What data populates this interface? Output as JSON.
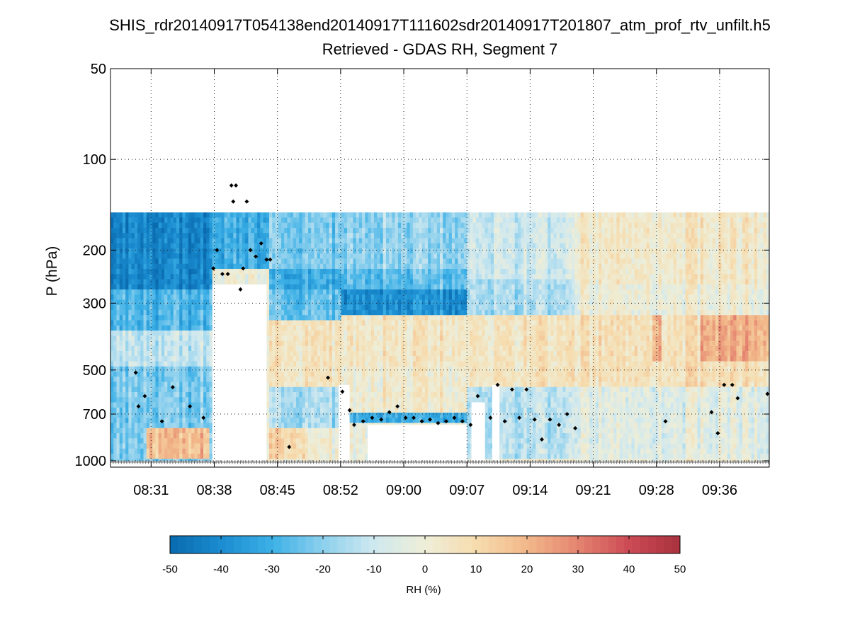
{
  "chart_data": {
    "type": "heatmap",
    "title": "SHIS_rdr20140917T054138end20140917T111602sdr20140917T201807_atm_prof_rtv_unfilt.h5",
    "subtitle": "Retrieved - GDAS RH, Segment 7",
    "ylabel": "P (hPa)",
    "xlabel": "",
    "y_scale": "log",
    "y_reversed": true,
    "ylim": [
      50,
      1050
    ],
    "yticks": [
      50,
      100,
      200,
      300,
      500,
      700,
      1000
    ],
    "ytick_labels": [
      "50",
      "100",
      "200",
      "300",
      "500",
      "700",
      "1000"
    ],
    "x_minutes_range": [
      26.5,
      99.5
    ],
    "xticks_minutes": [
      31,
      38,
      45,
      52,
      59,
      66,
      73,
      80,
      87,
      94
    ],
    "xtick_labels": [
      "08:31",
      "08:38",
      "08:45",
      "08:52",
      "09:00",
      "09:07",
      "09:14",
      "09:21",
      "09:28",
      "09:36"
    ],
    "grid": true,
    "data_top_pressure": 150,
    "colorbar": {
      "label": "RH (%)",
      "vmin": -50,
      "vmax": 50,
      "ticks": [
        -50,
        -40,
        -30,
        -20,
        -10,
        0,
        10,
        20,
        30,
        40,
        50
      ],
      "tick_labels": [
        "-50",
        "-40",
        "-30",
        "-20",
        "-10",
        "0",
        "10",
        "20",
        "30",
        "40",
        "50"
      ],
      "colors": [
        "#0a6aae",
        "#1a8cd0",
        "#3cb0e6",
        "#8dd0ee",
        "#cfe8ef",
        "#eeeed8",
        "#f6dcae",
        "#f2b88a",
        "#e48470",
        "#cc4a55",
        "#a8323e"
      ]
    },
    "wet_regions": [
      {
        "t0": 26.5,
        "t1": 37.8,
        "p0": 150,
        "p1": 270,
        "rh": -42
      },
      {
        "t0": 26.5,
        "t1": 37.8,
        "p0": 270,
        "p1": 370,
        "rh": -28
      },
      {
        "t0": 26.5,
        "t1": 37.8,
        "p0": 370,
        "p1": 480,
        "rh": -12
      },
      {
        "t0": 26.5,
        "t1": 37.8,
        "p0": 480,
        "p1": 1000,
        "rh": -22
      },
      {
        "t0": 30.5,
        "t1": 37.5,
        "p0": 780,
        "p1": 980,
        "rh": 18
      },
      {
        "t0": 37.8,
        "t1": 44.0,
        "p0": 150,
        "p1": 230,
        "rh": -30
      },
      {
        "t0": 44.0,
        "t1": 52.0,
        "p0": 150,
        "p1": 230,
        "rh": -22
      },
      {
        "t0": 44.0,
        "t1": 52.0,
        "p0": 230,
        "p1": 270,
        "rh": -32
      },
      {
        "t0": 44.0,
        "t1": 52.0,
        "p0": 270,
        "p1": 340,
        "rh": -25
      },
      {
        "t0": 44.0,
        "t1": 52.0,
        "p0": 340,
        "p1": 560,
        "rh": 6
      },
      {
        "t0": 44.0,
        "t1": 52.0,
        "p0": 560,
        "p1": 780,
        "rh": -16
      },
      {
        "t0": 44.0,
        "t1": 48.0,
        "p0": 780,
        "p1": 980,
        "rh": 12
      },
      {
        "t0": 52.0,
        "t1": 66.0,
        "p0": 150,
        "p1": 230,
        "rh": -18
      },
      {
        "t0": 52.0,
        "t1": 66.0,
        "p0": 230,
        "p1": 270,
        "rh": -25
      },
      {
        "t0": 52.0,
        "t1": 66.0,
        "p0": 270,
        "p1": 330,
        "rh": -38
      },
      {
        "t0": 52.0,
        "t1": 66.0,
        "p0": 330,
        "p1": 480,
        "rh": 6
      },
      {
        "t0": 52.0,
        "t1": 66.0,
        "p0": 480,
        "p1": 680,
        "rh": 3
      },
      {
        "t0": 52.0,
        "t1": 66.0,
        "p0": 680,
        "p1": 760,
        "rh": -30
      },
      {
        "t0": 66.0,
        "t1": 78.0,
        "p0": 150,
        "p1": 250,
        "rh": -10
      },
      {
        "t0": 66.0,
        "t1": 78.0,
        "p0": 250,
        "p1": 330,
        "rh": -16
      },
      {
        "t0": 66.0,
        "t1": 78.0,
        "p0": 330,
        "p1": 560,
        "rh": 5
      },
      {
        "t0": 66.0,
        "t1": 78.0,
        "p0": 560,
        "p1": 980,
        "rh": -14
      },
      {
        "t0": 78.0,
        "t1": 99.5,
        "p0": 150,
        "p1": 260,
        "rh": 4
      },
      {
        "t0": 78.0,
        "t1": 99.5,
        "p0": 260,
        "p1": 330,
        "rh": 0
      },
      {
        "t0": 78.0,
        "t1": 99.5,
        "p0": 330,
        "p1": 560,
        "rh": 8
      },
      {
        "t0": 78.0,
        "t1": 99.5,
        "p0": 560,
        "p1": 980,
        "rh": -4
      },
      {
        "t0": 92.0,
        "t1": 99.5,
        "p0": 330,
        "p1": 460,
        "rh": 22
      },
      {
        "t0": 86.5,
        "t1": 87.5,
        "p0": 330,
        "p1": 460,
        "rh": 24
      }
    ],
    "blank_regions": [
      {
        "t0": 37.8,
        "t1": 43.8,
        "p0": 260,
        "p1": 1010
      },
      {
        "t0": 55.0,
        "t1": 66.0,
        "p0": 760,
        "p1": 1010
      },
      {
        "t0": 51.8,
        "t1": 53.0,
        "p0": 560,
        "p1": 1010
      },
      {
        "t0": 66.5,
        "t1": 68.0,
        "p0": 640,
        "p1": 1010
      },
      {
        "t0": 68.8,
        "t1": 69.6,
        "p0": 560,
        "p1": 1010
      }
    ],
    "cloud_top_markers": [
      {
        "t": 29.3,
        "p": 510
      },
      {
        "t": 29.6,
        "p": 660
      },
      {
        "t": 30.3,
        "p": 610
      },
      {
        "t": 32.2,
        "p": 740
      },
      {
        "t": 33.4,
        "p": 570
      },
      {
        "t": 35.3,
        "p": 660
      },
      {
        "t": 36.8,
        "p": 720
      },
      {
        "t": 37.9,
        "p": 230
      },
      {
        "t": 38.3,
        "p": 200
      },
      {
        "t": 38.9,
        "p": 240
      },
      {
        "t": 39.5,
        "p": 240
      },
      {
        "t": 39.9,
        "p": 122
      },
      {
        "t": 40.1,
        "p": 138
      },
      {
        "t": 40.4,
        "p": 122
      },
      {
        "t": 40.9,
        "p": 270
      },
      {
        "t": 41.2,
        "p": 230
      },
      {
        "t": 41.6,
        "p": 138
      },
      {
        "t": 42.0,
        "p": 200
      },
      {
        "t": 42.6,
        "p": 210
      },
      {
        "t": 43.2,
        "p": 190
      },
      {
        "t": 43.8,
        "p": 215
      },
      {
        "t": 44.2,
        "p": 215
      },
      {
        "t": 46.3,
        "p": 900
      },
      {
        "t": 50.6,
        "p": 530
      },
      {
        "t": 52.2,
        "p": 590
      },
      {
        "t": 53.0,
        "p": 680
      },
      {
        "t": 53.5,
        "p": 760
      },
      {
        "t": 54.5,
        "p": 740
      },
      {
        "t": 55.5,
        "p": 720
      },
      {
        "t": 56.5,
        "p": 730
      },
      {
        "t": 57.4,
        "p": 690
      },
      {
        "t": 58.3,
        "p": 660
      },
      {
        "t": 59.2,
        "p": 720
      },
      {
        "t": 60.1,
        "p": 720
      },
      {
        "t": 61.0,
        "p": 740
      },
      {
        "t": 61.9,
        "p": 730
      },
      {
        "t": 62.8,
        "p": 750
      },
      {
        "t": 63.7,
        "p": 740
      },
      {
        "t": 64.6,
        "p": 720
      },
      {
        "t": 65.5,
        "p": 740
      },
      {
        "t": 66.4,
        "p": 760
      },
      {
        "t": 67.2,
        "p": 610
      },
      {
        "t": 68.6,
        "p": 720
      },
      {
        "t": 69.4,
        "p": 560
      },
      {
        "t": 70.2,
        "p": 740
      },
      {
        "t": 71.0,
        "p": 580
      },
      {
        "t": 71.8,
        "p": 720
      },
      {
        "t": 72.6,
        "p": 580
      },
      {
        "t": 73.5,
        "p": 730
      },
      {
        "t": 74.3,
        "p": 850
      },
      {
        "t": 75.2,
        "p": 730
      },
      {
        "t": 76.2,
        "p": 760
      },
      {
        "t": 77.1,
        "p": 700
      },
      {
        "t": 78.0,
        "p": 780
      },
      {
        "t": 88.0,
        "p": 740
      },
      {
        "t": 93.1,
        "p": 690
      },
      {
        "t": 93.8,
        "p": 810
      },
      {
        "t": 94.5,
        "p": 560
      },
      {
        "t": 95.4,
        "p": 560
      },
      {
        "t": 96.0,
        "p": 620
      },
      {
        "t": 99.3,
        "p": 600
      }
    ],
    "surface_pressure": 1010
  }
}
